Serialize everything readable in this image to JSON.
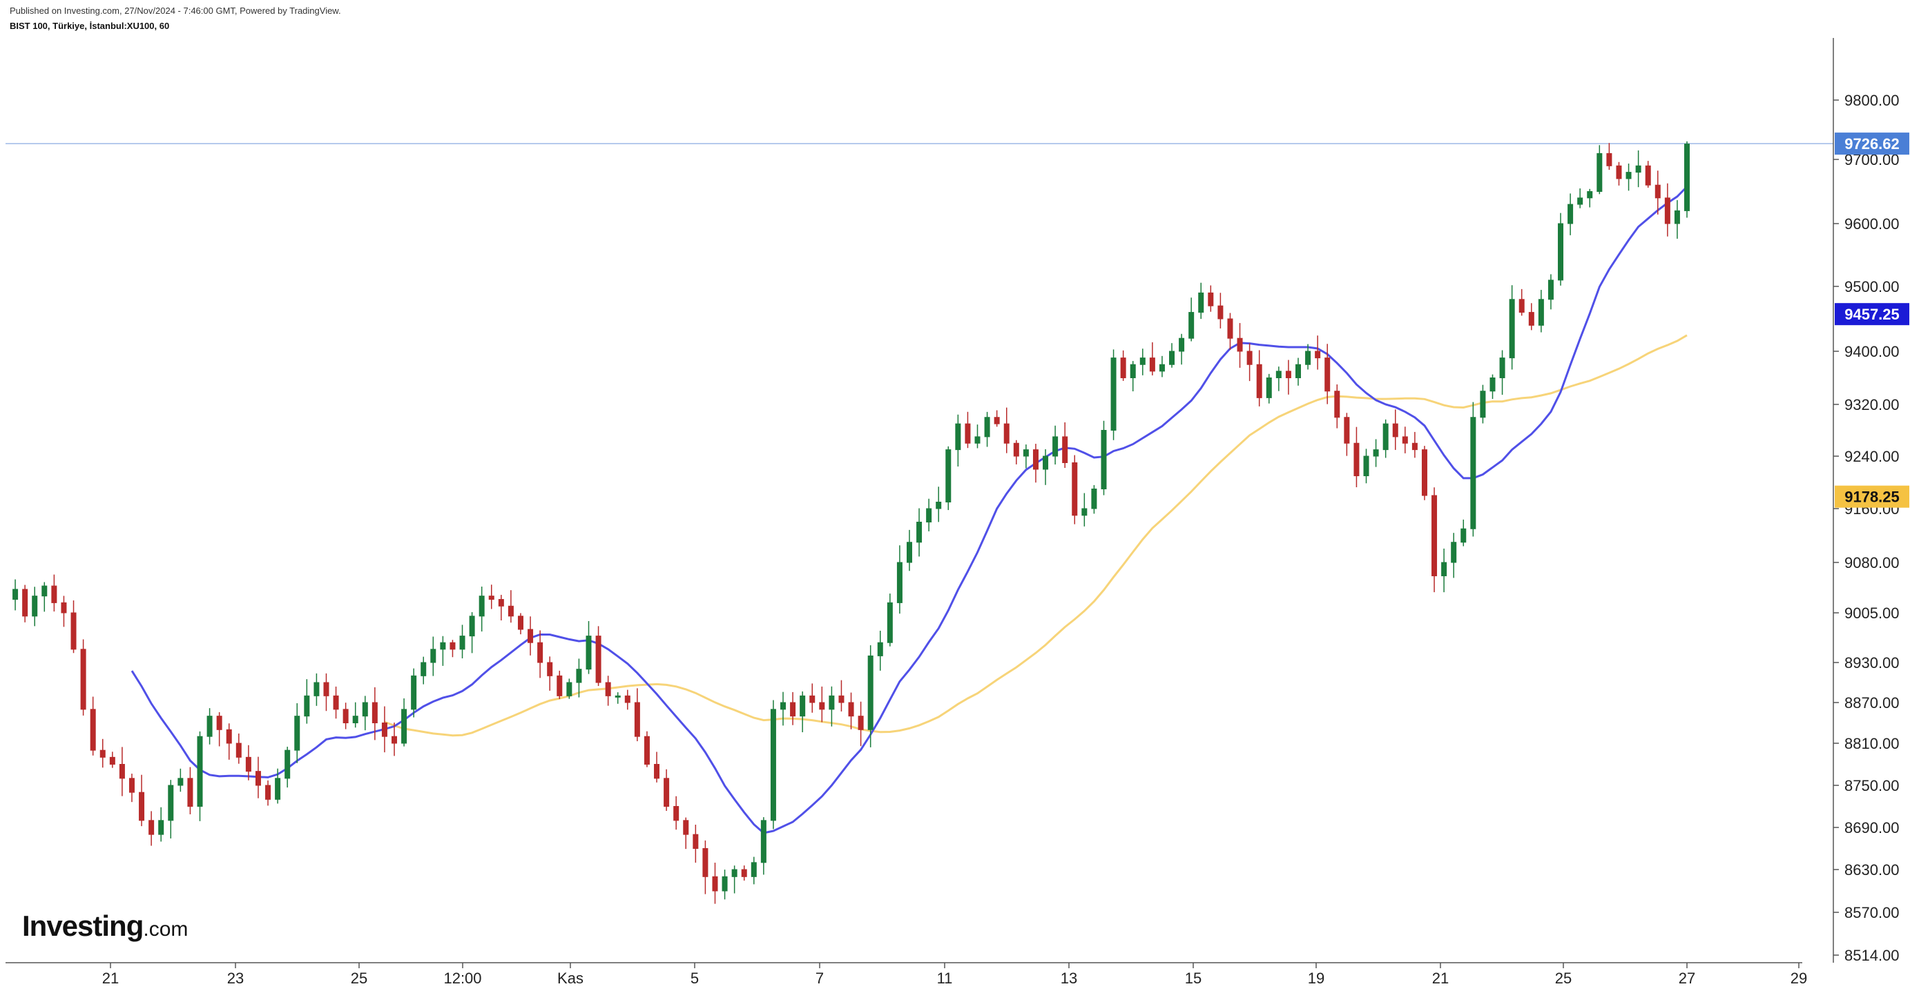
{
  "header": {
    "published": "Published on Investing.com, 27/Nov/2024 - 7:46:00 GMT, Powered by TradingView.",
    "symbol": "BIST 100, Türkiye, İstanbul:XU100, 60"
  },
  "logo": {
    "main": "Investing",
    "suffix": ".com"
  },
  "colors": {
    "up": "#1b7c3c",
    "down": "#b82a2a",
    "ma_short": "#5050e8",
    "ma_long": "#f7d479",
    "last_price": "#4a7fd6",
    "grid_axis": "#555555"
  },
  "chart_data": {
    "type": "candlestick",
    "x_ticks": [
      "21",
      "23",
      "25",
      "12:00",
      "Kas",
      "5",
      "7",
      "11",
      "13",
      "15",
      "19",
      "21",
      "25",
      "27",
      "29"
    ],
    "y_ticks": [
      "8514.00",
      "8570.00",
      "8630.00",
      "8690.00",
      "8750.00",
      "8810.00",
      "8870.00",
      "8930.00",
      "9005.00",
      "9080.00",
      "9160.00",
      "9240.00",
      "9320.00",
      "9400.00",
      "9500.00",
      "9600.00",
      "9700.00",
      "9800.00"
    ],
    "last_price": {
      "value": 9726.62,
      "label": "9726.62"
    },
    "ma_short_last": {
      "value": 9457.25,
      "label": "9457.25"
    },
    "ma_long_last": {
      "value": 9178.25,
      "label": "9178.25"
    },
    "close_path": [
      [
        0,
        9025
      ],
      [
        8,
        9040
      ],
      [
        16,
        9000
      ],
      [
        24,
        9030
      ],
      [
        32,
        9045
      ],
      [
        40,
        9020
      ],
      [
        48,
        9005
      ],
      [
        56,
        8950
      ],
      [
        64,
        8860
      ],
      [
        72,
        8800
      ],
      [
        80,
        8790
      ],
      [
        88,
        8780
      ],
      [
        96,
        8760
      ],
      [
        104,
        8740
      ],
      [
        112,
        8700
      ],
      [
        120,
        8680
      ],
      [
        128,
        8700
      ],
      [
        136,
        8750
      ],
      [
        144,
        8760
      ],
      [
        152,
        8720
      ],
      [
        160,
        8820
      ],
      [
        168,
        8850
      ],
      [
        176,
        8830
      ],
      [
        184,
        8810
      ],
      [
        192,
        8790
      ],
      [
        200,
        8770
      ],
      [
        208,
        8750
      ],
      [
        216,
        8730
      ],
      [
        224,
        8760
      ],
      [
        232,
        8800
      ],
      [
        240,
        8850
      ],
      [
        248,
        8880
      ],
      [
        256,
        8900
      ],
      [
        264,
        8880
      ],
      [
        272,
        8860
      ],
      [
        280,
        8840
      ],
      [
        288,
        8850
      ],
      [
        296,
        8870
      ],
      [
        304,
        8840
      ],
      [
        312,
        8820
      ],
      [
        320,
        8810
      ],
      [
        328,
        8860
      ],
      [
        336,
        8910
      ],
      [
        344,
        8930
      ],
      [
        352,
        8950
      ],
      [
        360,
        8960
      ],
      [
        368,
        8950
      ],
      [
        376,
        8970
      ],
      [
        384,
        9000
      ],
      [
        392,
        9030
      ],
      [
        400,
        9025
      ],
      [
        408,
        9015
      ],
      [
        416,
        9000
      ],
      [
        424,
        8980
      ],
      [
        432,
        8960
      ],
      [
        440,
        8930
      ],
      [
        448,
        8910
      ],
      [
        456,
        8880
      ],
      [
        464,
        8900
      ],
      [
        472,
        8920
      ],
      [
        480,
        8970
      ],
      [
        488,
        8900
      ],
      [
        496,
        8880
      ],
      [
        504,
        8880
      ],
      [
        512,
        8870
      ],
      [
        520,
        8820
      ],
      [
        528,
        8780
      ],
      [
        536,
        8760
      ],
      [
        544,
        8720
      ],
      [
        552,
        8700
      ],
      [
        560,
        8680
      ],
      [
        568,
        8660
      ],
      [
        576,
        8620
      ],
      [
        584,
        8600
      ],
      [
        592,
        8620
      ],
      [
        600,
        8630
      ],
      [
        608,
        8620
      ],
      [
        616,
        8640
      ],
      [
        624,
        8700
      ],
      [
        632,
        8860
      ],
      [
        640,
        8870
      ],
      [
        648,
        8850
      ],
      [
        656,
        8880
      ],
      [
        664,
        8870
      ],
      [
        672,
        8860
      ],
      [
        680,
        8880
      ],
      [
        688,
        8870
      ],
      [
        696,
        8850
      ],
      [
        704,
        8830
      ],
      [
        712,
        8940
      ],
      [
        720,
        8960
      ],
      [
        728,
        9020
      ],
      [
        736,
        9080
      ],
      [
        744,
        9110
      ],
      [
        752,
        9140
      ],
      [
        760,
        9160
      ],
      [
        768,
        9170
      ],
      [
        776,
        9250
      ],
      [
        784,
        9290
      ],
      [
        792,
        9260
      ],
      [
        800,
        9270
      ],
      [
        808,
        9300
      ],
      [
        816,
        9290
      ],
      [
        824,
        9260
      ],
      [
        832,
        9240
      ],
      [
        840,
        9250
      ],
      [
        848,
        9220
      ],
      [
        856,
        9240
      ],
      [
        864,
        9270
      ],
      [
        872,
        9230
      ],
      [
        880,
        9150
      ],
      [
        888,
        9160
      ],
      [
        896,
        9190
      ],
      [
        904,
        9280
      ],
      [
        912,
        9390
      ],
      [
        920,
        9360
      ],
      [
        928,
        9380
      ],
      [
        936,
        9390
      ],
      [
        944,
        9370
      ],
      [
        952,
        9380
      ],
      [
        960,
        9400
      ],
      [
        968,
        9420
      ],
      [
        976,
        9460
      ],
      [
        984,
        9490
      ],
      [
        992,
        9470
      ],
      [
        1000,
        9450
      ],
      [
        1008,
        9420
      ],
      [
        1016,
        9400
      ],
      [
        1024,
        9380
      ],
      [
        1032,
        9330
      ],
      [
        1040,
        9360
      ],
      [
        1048,
        9370
      ],
      [
        1056,
        9360
      ],
      [
        1064,
        9380
      ],
      [
        1072,
        9400
      ],
      [
        1080,
        9390
      ],
      [
        1088,
        9340
      ],
      [
        1096,
        9300
      ],
      [
        1104,
        9260
      ],
      [
        1112,
        9210
      ],
      [
        1120,
        9240
      ],
      [
        1128,
        9250
      ],
      [
        1136,
        9290
      ],
      [
        1144,
        9270
      ],
      [
        1152,
        9260
      ],
      [
        1160,
        9250
      ],
      [
        1168,
        9180
      ],
      [
        1176,
        9060
      ],
      [
        1184,
        9080
      ],
      [
        1192,
        9110
      ],
      [
        1200,
        9130
      ],
      [
        1208,
        9300
      ],
      [
        1216,
        9340
      ],
      [
        1224,
        9360
      ],
      [
        1232,
        9390
      ],
      [
        1240,
        9480
      ],
      [
        1248,
        9460
      ],
      [
        1256,
        9440
      ],
      [
        1264,
        9480
      ],
      [
        1272,
        9510
      ],
      [
        1280,
        9600
      ],
      [
        1288,
        9630
      ],
      [
        1296,
        9640
      ],
      [
        1304,
        9650
      ],
      [
        1312,
        9710
      ],
      [
        1320,
        9690
      ],
      [
        1328,
        9670
      ],
      [
        1336,
        9680
      ],
      [
        1344,
        9690
      ],
      [
        1352,
        9660
      ],
      [
        1360,
        9640
      ],
      [
        1368,
        9600
      ],
      [
        1376,
        9620
      ],
      [
        1384,
        9726
      ]
    ]
  }
}
